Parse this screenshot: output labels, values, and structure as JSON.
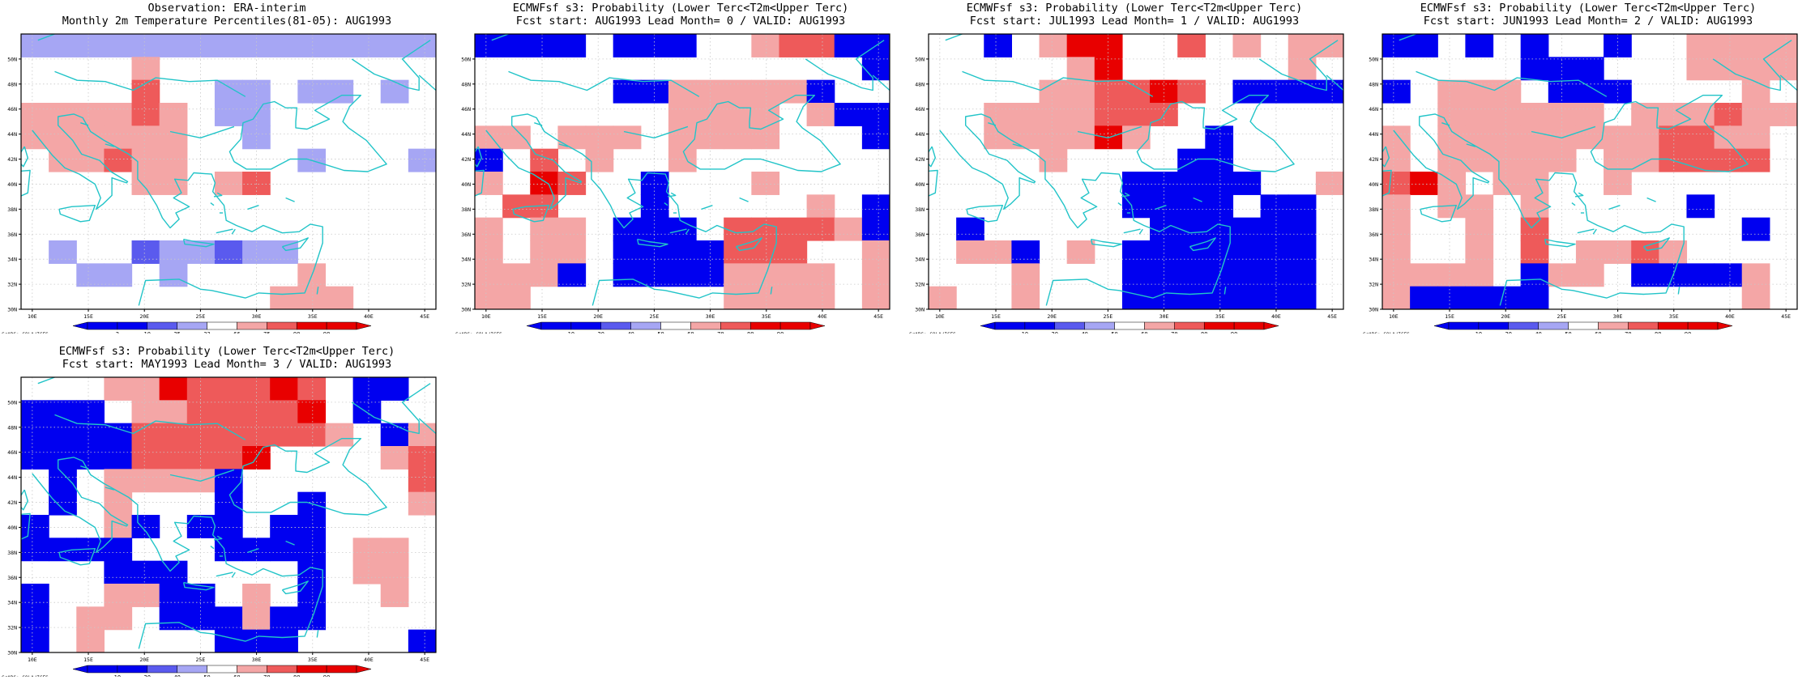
{
  "lon_ticks": [
    "10E",
    "15E",
    "20E",
    "25E",
    "30E",
    "35E",
    "40E",
    "45E"
  ],
  "lat_ticks": [
    "50N",
    "48N",
    "46N",
    "44N",
    "42N",
    "40N",
    "38N",
    "36N",
    "34N",
    "32N",
    "30N"
  ],
  "credit": "GrADS: COLA/IGES",
  "colors": {
    "coast": "#22c4c8",
    "B3": "#0000f0",
    "B2": "#5a5aee",
    "B1": "#a6a6f4",
    "R1": "#f4a6a6",
    "R2": "#ee5a5a",
    "R3": "#e80000"
  },
  "panels": [
    {
      "title1": "Observation: ERA-interim",
      "title2": "Monthly 2m Temperature Percentiles(81-05): AUG1993",
      "legend": [
        "2",
        "10",
        "25",
        "33",
        "66",
        "75",
        "90",
        "98"
      ],
      "grid": [
        "B1 B1 B1 B1 B1 B1 B1 B1 B1 B1 B1 B1 B1 B1 B1",
        ".  .  .  .  R1 .  .  .  .  .  .  .  .  .  . ",
        ".  .  .  .  R2 .  .  B1 B1 .  B1 B1 .  B1 . ",
        "R1 R1 R1 R1 R2 R1 .  B1 B1 .  .  .  .  .  . ",
        "R1 R1 R1 R1 R1 R1 .  .  B1 .  .  .  .  .  . ",
        ".  R1 R1 R2 R1 R1 .  .  .  .  B1 .  .  .  B1",
        ".  .  .  .  R1 R1 .  R1 R2 .  .  .  .  .  . ",
        ".  .  .  .  .  .  .  .  .  .  .  .  .  .  . ",
        ".  .  .  .  .  .  .  .  .  .  .  .  .  .  . ",
        ".  B1 .  .  B2 B1 B1 B2 B1 B1 .  .  .  .  . ",
        ".  .  B1 B1 .  B1 .  .  .  .  R1 .  .  .  . ",
        ".  .  .  .  .  .  .  .  .  R1 R1 R1 .  .  . "
      ]
    },
    {
      "title1": "ECMWFsf s3: Probability (Lower Terc<T2m<Upper Terc)",
      "title2": "Fcst start: AUG1993  Lead Month= 0 / VALID: AUG1993",
      "legend": [
        "10",
        "20",
        "40",
        "50",
        "60",
        "70",
        "80",
        "90"
      ],
      "grid": [
        "B3 B3 B3 B3 .  B3 B3 B3 .  .  R1 R2 R2 B3 B3",
        ".  .  .  .  .  .  .  .  .  .  .  .  .  .  B3",
        ".  .  .  .  .  B3 B3 R1 R1 R1 R1 R1 B3 .  . ",
        ".  .  .  .  .  .  .  R1 R1 R1 R1 .  R1 B3 B3",
        "R1 R1 .  R1 R1 R1 .  R1 R1 R1 R1 .  .  .  B3",
        "B3 .  R2 .  R1 .  .  R1 .  .  .  .  .  .  . ",
        "R1 .  R3 R2 .  .  B3 .  .  .  R1 .  .  .  . ",
        ".  R2 R2 .  .  .  B3 .  .  .  .  .  R1 .  B3",
        "R1 .  R1 R1 .  B3 B3 B3 .  R2 R2 R2 R2 R1 B3",
        "R1 .  R1 R1 .  B3 B3 B3 B3 R2 R2 R2 .  .  R1",
        "R1 R1 R1 B3 .  B3 B3 B3 B3 R1 R1 R1 R1 .  R1",
        "R1 R1 .  .  .  .  .  .  .  R1 R1 R1 R1 .  R1"
      ]
    },
    {
      "title1": "ECMWFsf s3: Probability (Lower Terc<T2m<Upper Terc)",
      "title2": "Fcst start: JUL1993  Lead Month= 1 / VALID: AUG1993",
      "legend": [
        "10",
        "20",
        "40",
        "50",
        "60",
        "70",
        "80",
        "90"
      ],
      "grid": [
        ".  .  B3 .  R1 R3 R3 .  .  R2 .  R1 .  R1 R1",
        ".  .  .  .  .  R1 R3 .  .  .  .  .  .  R1 . ",
        ".  .  .  .  R1 R1 R2 R2 R3 R2 .  B3 B3 B3 B3",
        ".  .  R1 R1 R1 R1 R2 R2 R2 .  .  .  .  .  . ",
        ".  .  R1 R1 R1 R1 R3 R1 .  .  B3 .  .  .  . ",
        ".  .  .  .  R1 .  .  .  .  B3 B3 .  .  .  . ",
        ".  .  .  .  .  .  .  B3 B3 B3 B3 B3 .  .  R1",
        ".  .  .  .  .  .  .  B3 B3 B3 B3 .  B3 B3 . ",
        ".  B3 .  .  .  .  .  .  B3 B3 B3 B3 B3 B3 . ",
        ".  R1 R1 B3 .  R1 .  B3 B3 B3 B3 B3 B3 B3 . ",
        ".  .  .  R1 .  .  .  B3 B3 B3 B3 B3 B3 B3 . ",
        "R1 .  .  R1 .  .  .  B3 B3 B3 B3 B3 B3 B3 . "
      ]
    },
    {
      "title1": "ECMWFsf s3: Probability (Lower Terc<T2m<Upper Terc)",
      "title2": "Fcst start: JUN1993  Lead Month= 2 / VALID: AUG1993",
      "legend": [
        "10",
        "20",
        "40",
        "50",
        "60",
        "70",
        "80",
        "90"
      ],
      "grid": [
        "B3 B3 .  B3 .  B3 .  .  B3 .  .  R1 R1 R1 R1",
        ".  .  .  .  .  B3 B3 B3 .  .  .  R1 R1 R1 R1",
        "B3 .  R1 R1 R1 .  B3 B3 B3 .  .  .  .  R1 . ",
        ".  .  R1 R1 R1 R1 R1 R1 .  R1 R1 R1 R2 R1 R1",
        "R1 .  R1 R1 R1 R1 R1 R1 R1 R1 R2 R2 R1 R1 . ",
        "R1 .  R1 R1 R1 R1 R1 .  R1 R1 R2 R2 R2 R2 . ",
        "R2 R3 R1 .  R1 R1 .  .  R1 .  .  .  .  .  . ",
        "R1 .  R1 R1 .  R1 .  .  .  .  .  B3 .  .  . ",
        "R1 .  .  R1 .  R2 .  .  .  .  .  .  .  B3 . ",
        "R1 .  .  R1 .  R2 .  R1 R1 R2 R1 .  .  .  . ",
        "R1 R1 R1 R1 .  B3 R1 R1 .  B3 B3 B3 B3 R1 . ",
        "R1 B3 B3 B3 B3 B3 .  .  .  .  .  .  .  R1 . "
      ]
    },
    {
      "title1": "ECMWFsf s3: Probability (Lower Terc<T2m<Upper Terc)",
      "title2": "Fcst start: MAY1993  Lead Month= 3 / VALID: AUG1993",
      "legend": [
        "10",
        "20",
        "40",
        "50",
        "60",
        "70",
        "80",
        "90"
      ],
      "grid": [
        ".  .  .  R1 R1 R3 R2 R2 R2 R3 R2 .  B3 B3 . ",
        "B3 B3 B3 .  R1 R1 R2 R2 R2 R2 R3 .  B3 .  . ",
        "B3 B3 B3 B3 R2 R2 R2 R2 R2 R2 R2 R1 .  B3 R1",
        "B3 B3 B3 B3 R2 R2 R2 R2 R3 .  .  .  .  R1 R2",
        ".  B3 .  R1 R1 R1 R1 B3 .  .  .  .  .  .  R2",
        ".  B3 .  R1 .  .  .  B3 .  .  B3 .  .  .  R1",
        "B3 .  .  R1 B3 .  B3 B3 .  B3 B3 .  .  .  . ",
        "B3 B3 B3 B3 .  .  .  B3 B3 B3 B3 .  R1 R1 . ",
        ".  .  .  B3 B3 B3 .  .  .  .  B3 .  R1 R1 . ",
        "B3 .  .  R1 R1 B3 B3 .  R1 .  B3 .  .  R1 . ",
        "B3 .  R1 R1 .  B3 B3 B3 R1 B3 B3 .  .  .  . ",
        "B3 .  R1 .  .  .  .  B3 B3 B3 .  .  .  .  B3"
      ]
    }
  ]
}
